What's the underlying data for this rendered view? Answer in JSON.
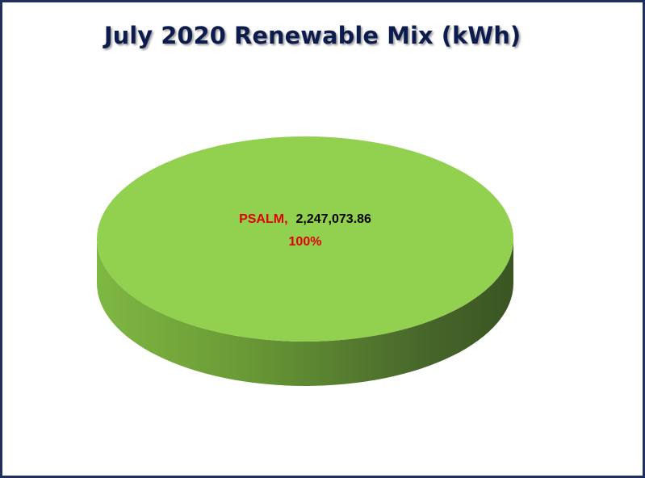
{
  "chart_data": {
    "type": "pie",
    "title": "July 2020 Renewable Mix (kWh)",
    "categories": [
      "PSALM"
    ],
    "values": [
      2247073.86
    ],
    "value_labels": [
      "2,247,073.86"
    ],
    "percents": [
      100
    ],
    "percent_labels": [
      "100%"
    ],
    "label_separator": ",",
    "colors": [
      "#92d050"
    ]
  }
}
